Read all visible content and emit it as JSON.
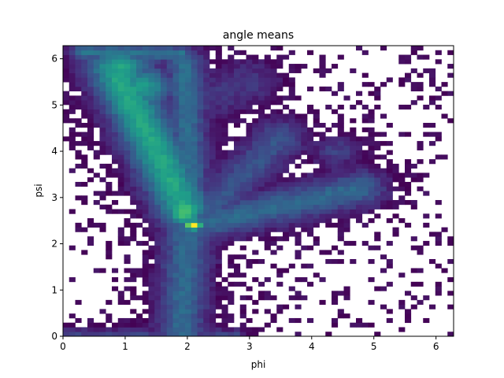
{
  "chart_data": {
    "type": "heatmap",
    "title": "angle means",
    "xlabel": "phi",
    "ylabel": "psi",
    "xlim": [
      0,
      6.283
    ],
    "ylim": [
      0,
      6.283
    ],
    "xticks": [
      0,
      1,
      2,
      3,
      4,
      5,
      6
    ],
    "yticks": [
      0,
      1,
      2,
      3,
      4,
      5,
      6
    ],
    "bins": [
      64,
      64
    ],
    "colormap": "viridis",
    "grid": false,
    "density_features": [
      {
        "kind": "segment",
        "x0": 0.3,
        "y0": 6.15,
        "x1": 1.9,
        "y1": 6.1,
        "peak": 0.35,
        "width": 0.12,
        "extent": 0.3
      },
      {
        "kind": "blob",
        "x": 0.9,
        "y": 5.8,
        "peak": 0.55,
        "sx": 0.35,
        "sy": 0.28
      },
      {
        "kind": "blob",
        "x": 1.3,
        "y": 5.4,
        "peak": 0.5,
        "sx": 0.3,
        "sy": 0.3
      },
      {
        "kind": "segment",
        "x0": 0.9,
        "y0": 5.6,
        "x1": 1.95,
        "y1": 2.8,
        "peak": 0.55,
        "width": 0.3,
        "extent": 0.6
      },
      {
        "kind": "segment",
        "x0": 1.95,
        "y0": 5.9,
        "x1": 2.05,
        "y1": 3.2,
        "peak": 0.32,
        "width": 0.2,
        "extent": 0.4
      },
      {
        "kind": "blob",
        "x": 1.95,
        "y": 2.7,
        "peak": 0.7,
        "sx": 0.2,
        "sy": 0.22
      },
      {
        "kind": "blob",
        "x": 2.1,
        "y": 2.4,
        "peak": 1.0,
        "sx": 0.1,
        "sy": 0.08
      },
      {
        "kind": "segment",
        "x0": 2.1,
        "y0": 2.4,
        "x1": 4.8,
        "y1": 3.2,
        "peak": 0.3,
        "width": 0.25,
        "extent": 0.3
      },
      {
        "kind": "segment",
        "x0": 2.1,
        "y0": 2.4,
        "x1": 3.5,
        "y1": 4.3,
        "peak": 0.22,
        "width": 0.25,
        "extent": 0.3
      },
      {
        "kind": "segment",
        "x0": 2.0,
        "y0": 2.3,
        "x1": 1.9,
        "y1": 0.0,
        "peak": 0.3,
        "width": 0.25,
        "extent": 0.4
      },
      {
        "kind": "segment",
        "x0": 2.0,
        "y0": 5.0,
        "x1": 3.0,
        "y1": 5.5,
        "peak": 0.12,
        "width": 0.3,
        "extent": 0.3
      },
      {
        "kind": "segment",
        "x0": 0.0,
        "y0": 0.05,
        "x1": 2.8,
        "y1": 0.05,
        "peak": 0.15,
        "width": 0.07,
        "extent": 0.2
      },
      {
        "kind": "blob",
        "x": 4.4,
        "y": 4.0,
        "peak": 0.15,
        "sx": 0.25,
        "sy": 0.2
      }
    ],
    "value_range": [
      0,
      1
    ],
    "background": "#ffffff"
  }
}
